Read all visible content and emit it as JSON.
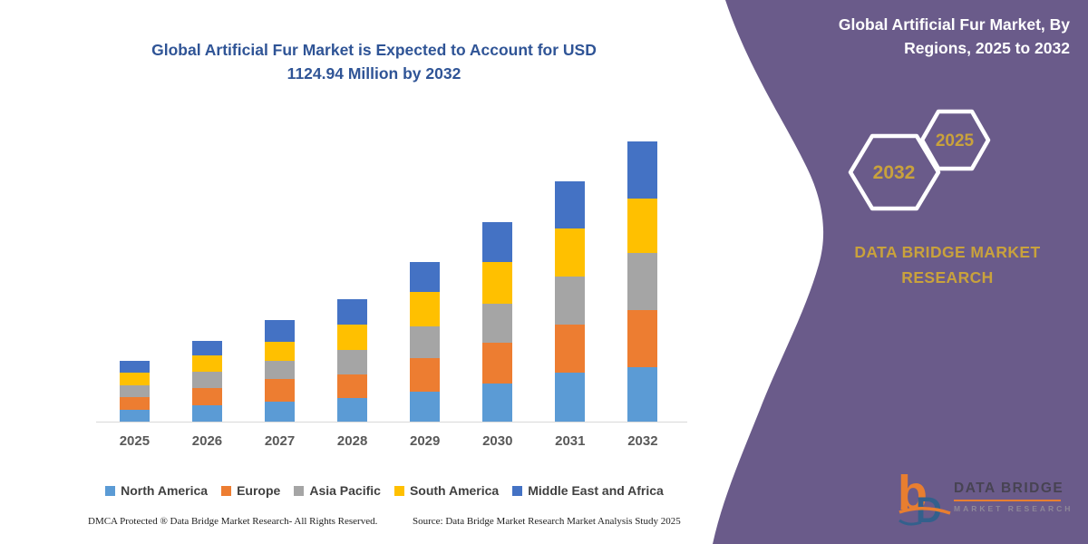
{
  "colors": {
    "purple_panel": "#6A5B8A",
    "title_blue": "#2F5496",
    "gold": "#C9A23C",
    "axis_line": "#D9D9D9",
    "tick_label": "#595959",
    "legend_text": "#404040",
    "logo_orange": "#E87E30",
    "logo_blue": "#33608C"
  },
  "chart": {
    "title_line1": "Global Artificial Fur Market is Expected to Account for USD",
    "title_line2": "1124.94 Million by 2032"
  },
  "chart_data": {
    "type": "bar",
    "stacked": true,
    "title": "Global Artificial Fur Market is Expected to Account for USD 1124.94 Million by 2032",
    "unit": "USD Million",
    "categories": [
      "2025",
      "2026",
      "2027",
      "2028",
      "2029",
      "2030",
      "2031",
      "2032"
    ],
    "series": [
      {
        "name": "North America",
        "color": "#5B9BD5",
        "values": [
          47.3,
          64.4,
          81.5,
          93.6,
          121.2,
          151.4,
          197.7,
          218.4
        ]
      },
      {
        "name": "Europe",
        "color": "#ED7D31",
        "values": [
          51.0,
          69.2,
          89.6,
          97.2,
          133.6,
          166.4,
          190.4,
          229.4
        ]
      },
      {
        "name": "Asia Pacific",
        "color": "#A5A5A5",
        "values": [
          47.3,
          67.7,
          71.7,
          96.8,
          127.4,
          155.5,
          195.5,
          230.4
        ]
      },
      {
        "name": "South America",
        "color": "#FFC000",
        "values": [
          51.0,
          63.3,
          79.0,
          100.8,
          136.9,
          167.5,
          193.0,
          218.4
        ]
      },
      {
        "name": "Middle East and Africa",
        "color": "#4472C4",
        "values": [
          47.3,
          60.4,
          84.8,
          101.9,
          121.6,
          160.2,
          189.3,
          228.3
        ]
      }
    ],
    "totals": [
      243.9,
      325.0,
      406.6,
      490.3,
      640.7,
      801.0,
      965.9,
      1124.94
    ],
    "value_axis_visible": false,
    "grid": false,
    "legend_position": "bottom",
    "notes": "Segment values estimated from bar pixel heights; 2032 total anchored to 1124.94 USD Million stated in title."
  },
  "panel": {
    "title_line1": "Global Artificial Fur Market, By",
    "title_line2": "Regions, 2025 to 2032",
    "hexagon_back_year": "2032",
    "hexagon_front_year": "2025",
    "brand_line1": "DATA BRIDGE MARKET",
    "brand_line2": "RESEARCH"
  },
  "logo": {
    "name": "DATA BRIDGE",
    "subtitle": "MARKET RESEARCH"
  },
  "footer": {
    "left": "DMCA Protected ® Data Bridge Market Research-  All Rights Reserved.",
    "source": "Source: Data Bridge Market Research  Market Analysis Study 2025"
  }
}
